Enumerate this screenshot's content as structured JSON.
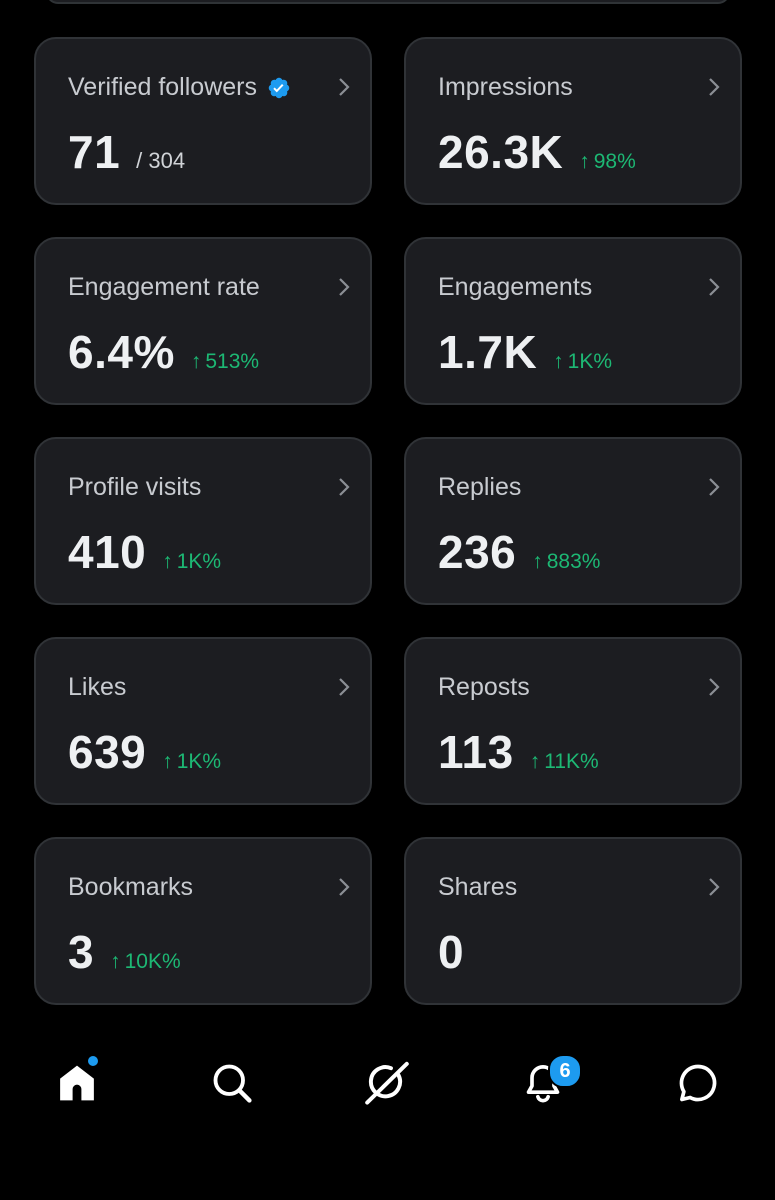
{
  "accent": {
    "up": "#1db874",
    "blue": "#1d9bf0"
  },
  "metrics": [
    {
      "label": "Verified followers",
      "value": "71",
      "total": "/ 304",
      "change": "",
      "verified": true
    },
    {
      "label": "Impressions",
      "value": "26.3K",
      "change": "98%"
    },
    {
      "label": "Engagement rate",
      "value": "6.4%",
      "change": "513%"
    },
    {
      "label": "Engagements",
      "value": "1.7K",
      "change": "1K%"
    },
    {
      "label": "Profile visits",
      "value": "410",
      "change": "1K%"
    },
    {
      "label": "Replies",
      "value": "236",
      "change": "883%"
    },
    {
      "label": "Likes",
      "value": "639",
      "change": "1K%"
    },
    {
      "label": "Reposts",
      "value": "113",
      "change": "11K%"
    },
    {
      "label": "Bookmarks",
      "value": "3",
      "change": "10K%"
    },
    {
      "label": "Shares",
      "value": "0",
      "change": ""
    }
  ],
  "nav": {
    "items": [
      {
        "name": "home",
        "icon": "home-icon",
        "has_dot": true
      },
      {
        "name": "search",
        "icon": "search-icon"
      },
      {
        "name": "grok",
        "icon": "grok-icon"
      },
      {
        "name": "notifications",
        "icon": "bell-icon",
        "badge": "6"
      },
      {
        "name": "messages",
        "icon": "message-icon"
      }
    ]
  }
}
